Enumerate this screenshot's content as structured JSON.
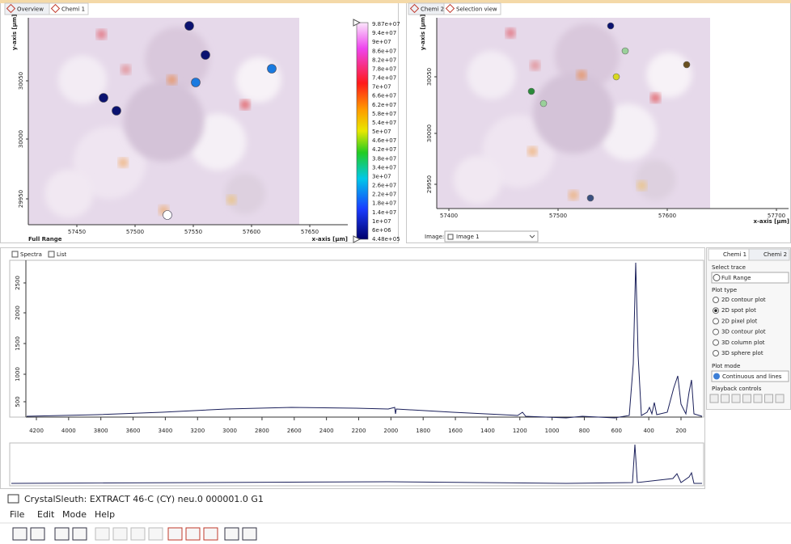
{
  "left_panel": {
    "tabs": [
      "Overview",
      "Chemi 1"
    ],
    "y_axis_label": "y-axis [µm]",
    "x_axis_label": "x-axis [µm]",
    "x_ticks": [
      "57450",
      "57500",
      "57550",
      "57600",
      "57650"
    ],
    "y_ticks": [
      "30050",
      "30000",
      "29950"
    ],
    "range_label": "Full Range",
    "colorbar_labels": [
      "9.87e+07",
      "9.4e+07",
      "9e+07",
      "8.6e+07",
      "8.2e+07",
      "7.8e+07",
      "7.4e+07",
      "7e+07",
      "6.6e+07",
      "6.2e+07",
      "5.8e+07",
      "5.4e+07",
      "5e+07",
      "4.6e+07",
      "4.2e+07",
      "3.8e+07",
      "3.4e+07",
      "3e+07",
      "2.6e+07",
      "2.2e+07",
      "1.8e+07",
      "1.4e+07",
      "1e+07",
      "6e+06",
      "4.48e+05"
    ]
  },
  "right_panel": {
    "tabs": [
      "Chemi 2",
      "Selection view"
    ],
    "y_axis_label": "y-axis [µm]",
    "x_axis_label": "x-axis [µm]",
    "x_ticks": [
      "57400",
      "57500",
      "57600",
      "57700"
    ],
    "y_ticks": [
      "30050",
      "30000",
      "29950"
    ],
    "image_label": "Image:",
    "image_select": "Image 1"
  },
  "spectra_panel": {
    "tabs": [
      "Spectra",
      "List"
    ],
    "x_ticks": [
      "4200",
      "4000",
      "3800",
      "3600",
      "3400",
      "3200",
      "3000",
      "2800",
      "2600",
      "2400",
      "2200",
      "2000",
      "1800",
      "1600",
      "1400",
      "1200",
      "1000",
      "800",
      "600",
      "400",
      "200"
    ],
    "y_ticks": [
      "500",
      "1000",
      "1500",
      "2000",
      "2500"
    ]
  },
  "sidebar": {
    "tabs": [
      "Chemi 1",
      "Chemi 2"
    ],
    "select_trace_label": "Select trace",
    "trace": "Full Range",
    "plot_type_label": "Plot type",
    "plot_types": [
      "2D contour plot",
      "2D spot plot",
      "2D pixel plot",
      "3D contour plot",
      "3D column plot",
      "3D sphere plot"
    ],
    "plot_mode_label": "Plot mode",
    "plot_mode": "Continuous and lines",
    "playback_label": "Playback controls"
  },
  "window": {
    "title": "CrystalSleuth: EXTRACT 46-C (CY) neu.0 000001.0 G1",
    "menu": [
      "File",
      "Edit",
      "Mode",
      "Help"
    ]
  }
}
